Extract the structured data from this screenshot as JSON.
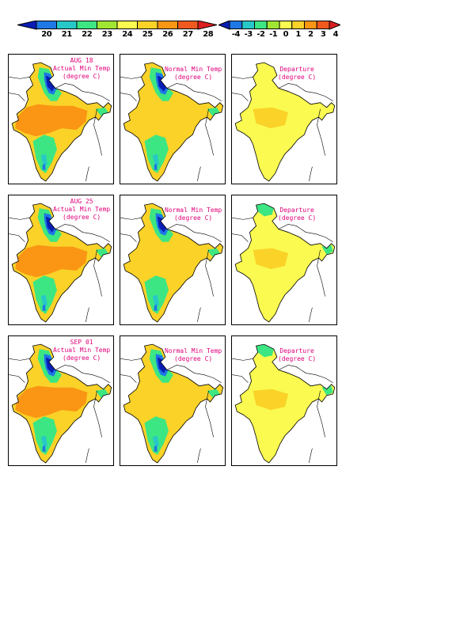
{
  "colorbars": [
    {
      "name": "actual-normal-scale",
      "ticks": [
        "20",
        "21",
        "22",
        "23",
        "24",
        "25",
        "26",
        "27",
        "28"
      ],
      "colors": [
        "#0a1eb4",
        "#1e78e6",
        "#28c8c8",
        "#3ce682",
        "#a0e632",
        "#fafa50",
        "#fad228",
        "#fa9614",
        "#f05a1e",
        "#dc1e1e"
      ]
    },
    {
      "name": "departure-scale",
      "ticks": [
        "-4",
        "-3",
        "-2",
        "-1",
        "0",
        "1",
        "2",
        "3",
        "4"
      ],
      "colors": [
        "#0a1eb4",
        "#1e78e6",
        "#28c8c8",
        "#3ce682",
        "#a0e632",
        "#fafa50",
        "#fad228",
        "#fa9614",
        "#f05a1e",
        "#dc1e1e"
      ]
    }
  ],
  "rows": [
    {
      "date": "AUG 18",
      "panels": [
        {
          "kind": "actual",
          "lines": [
            "Actual Min Temp",
            "(degree C)"
          ],
          "base": "#fad228",
          "hot": "#fa9614",
          "cool": "#3ce682",
          "cold": "#0a1eb4"
        },
        {
          "kind": "normal",
          "lines": [
            "Normal Min Temp",
            "(degree C)"
          ],
          "base": "#fad228",
          "hot": "#fad228",
          "cool": "#3ce682",
          "cold": "#0a1eb4"
        },
        {
          "kind": "departure",
          "lines": [
            "Departure",
            "(degree C)"
          ],
          "base": "#fafa50",
          "hot": "#fad228",
          "cool": "#fafa50",
          "cold": "#fafa50"
        }
      ]
    },
    {
      "date": "AUG 25",
      "panels": [
        {
          "kind": "actual",
          "lines": [
            "Actual Min Temp",
            "(degree C)"
          ],
          "base": "#fad228",
          "hot": "#fa9614",
          "cool": "#3ce682",
          "cold": "#0a1eb4"
        },
        {
          "kind": "normal",
          "lines": [
            "Normal Min Temp",
            "(degree C)"
          ],
          "base": "#fad228",
          "hot": "#fad228",
          "cool": "#3ce682",
          "cold": "#0a1eb4"
        },
        {
          "kind": "departure",
          "lines": [
            "Departure",
            "(degree C)"
          ],
          "base": "#fafa50",
          "hot": "#fad228",
          "cool": "#3ce682",
          "cold": "#fafa50"
        }
      ]
    },
    {
      "date": "SEP 01",
      "panels": [
        {
          "kind": "actual",
          "lines": [
            "Actual Min Temp",
            "(degree C)"
          ],
          "base": "#fad228",
          "hot": "#fa9614",
          "cool": "#3ce682",
          "cold": "#0a1eb4"
        },
        {
          "kind": "normal",
          "lines": [
            "Normal Min Temp",
            "(degree C)"
          ],
          "base": "#fad228",
          "hot": "#fad228",
          "cool": "#3ce682",
          "cold": "#0a1eb4"
        },
        {
          "kind": "departure",
          "lines": [
            "Departure",
            "(degree C)"
          ],
          "base": "#fafa50",
          "hot": "#fad228",
          "cool": "#3ce682",
          "cold": "#fafa50"
        }
      ]
    }
  ]
}
